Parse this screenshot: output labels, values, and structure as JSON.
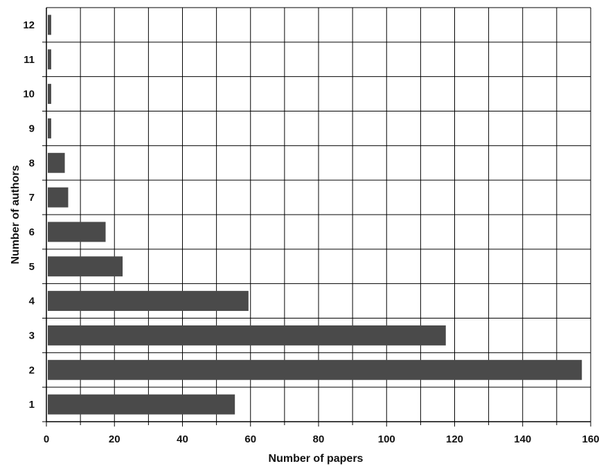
{
  "chart_data": {
    "type": "bar",
    "orientation": "horizontal",
    "categories": [
      "1",
      "2",
      "3",
      "4",
      "5",
      "6",
      "7",
      "8",
      "9",
      "10",
      "11",
      "12"
    ],
    "values": [
      55,
      157,
      117,
      59,
      22,
      17,
      6,
      5,
      1,
      1,
      1,
      1
    ],
    "xlabel": "Number of papers",
    "ylabel": "Number of authors",
    "xlim": [
      0,
      160
    ],
    "xticks": [
      0,
      20,
      40,
      60,
      80,
      100,
      120,
      140,
      160
    ],
    "grid": true,
    "legend": "none",
    "colors": {
      "bar": "#4a4a4a",
      "grid": "#000000",
      "background": "#ffffff"
    }
  }
}
